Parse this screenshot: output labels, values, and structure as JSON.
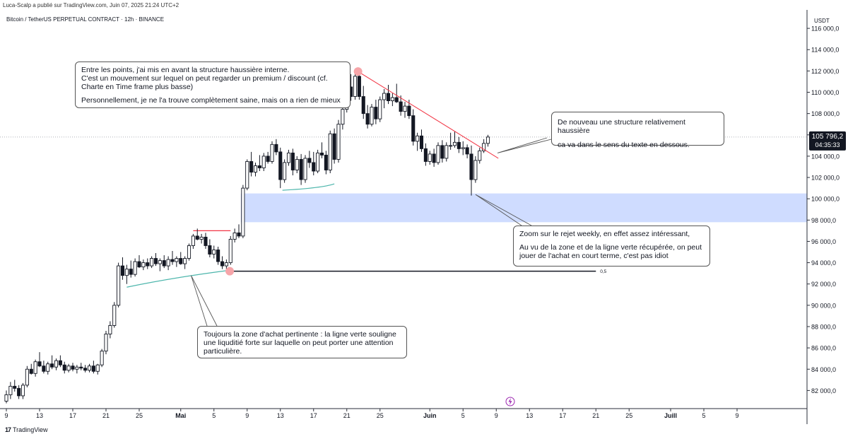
{
  "header": {
    "published": "Luca-Scalp a publié sur TradingView.com, Juin 07, 2025 21:24 UTC+2",
    "symbol": "Bitcoin / TetherUS PERPETUAL CONTRACT · 12h · BINANCE"
  },
  "branding": {
    "logo_mark": "17",
    "name": "TradingView"
  },
  "colors": {
    "up": "#ffffff",
    "down": "#131722",
    "trendline_red": "#f23645",
    "curve_teal": "#4db6ac",
    "zone": "#cfdcff",
    "marker": "#f6a5a9",
    "hline": "#131722"
  },
  "annotations": {
    "note1": {
      "p1": "Entre les points, j'ai mis en avant la structure haussière interne.\nC'est un mouvement sur lequel on peut regarder un premium / discount (cf. Charte en Time frame plus basse)",
      "p2": "Personnellement, je ne l'a trouve complètement saine, mais on a rien de mieux"
    },
    "note2": {
      "p1": "De nouveau une structure relativement haussière",
      "p2": "ca va dans le sens du texte en dessous."
    },
    "note3": {
      "p1": "Zoom sur le rejet weekly, en effet assez intéressant,",
      "p2": "Au vu de la zone et de la ligne verte récupérée, on peut jouer de l'achat en court terme, c'est pas idiot"
    },
    "note4": {
      "p1": "Toujours la zone d'achat pertinente : la ligne verte souligne une liquditié forte sur laquelle on peut porter une attention particulière."
    }
  },
  "chart_data": {
    "type": "candlestick",
    "timeframe": "12h",
    "currency": "USDT",
    "ylim": [
      80300,
      117600
    ],
    "y_ticks": [
      82000,
      84000,
      86000,
      88000,
      90000,
      92000,
      94000,
      96000,
      98000,
      100000,
      102000,
      104000,
      106000,
      108000,
      110000,
      112000,
      114000,
      116000
    ],
    "y_tick_labels": [
      "82 000,0",
      "84 000,0",
      "86 000,0",
      "88 000,0",
      "90 000,0",
      "92 000,0",
      "94 000,0",
      "96 000,0",
      "98 000,0",
      "100 000,0",
      "102 000,0",
      "104 000,0",
      "106 000,0",
      "108 000,0",
      "110 000,0",
      "112 000,0",
      "114 000,0",
      "116 000,0"
    ],
    "x_ticks": [
      {
        "label": "9",
        "bar": 0
      },
      {
        "label": "13",
        "bar": 8
      },
      {
        "label": "17",
        "bar": 16
      },
      {
        "label": "21",
        "bar": 24
      },
      {
        "label": "25",
        "bar": 32
      },
      {
        "label": "Mai",
        "bar": 42
      },
      {
        "label": "5",
        "bar": 50
      },
      {
        "label": "9",
        "bar": 58
      },
      {
        "label": "13",
        "bar": 66
      },
      {
        "label": "17",
        "bar": 74
      },
      {
        "label": "21",
        "bar": 82
      },
      {
        "label": "25",
        "bar": 90
      },
      {
        "label": "Juin",
        "bar": 102
      },
      {
        "label": "5",
        "bar": 110
      },
      {
        "label": "9",
        "bar": 118
      },
      {
        "label": "13",
        "bar": 126
      },
      {
        "label": "17",
        "bar": 134
      },
      {
        "label": "21",
        "bar": 142
      },
      {
        "label": "25",
        "bar": 150
      },
      {
        "label": "Juill",
        "bar": 160
      },
      {
        "label": "5",
        "bar": 168
      },
      {
        "label": "9",
        "bar": 176
      }
    ],
    "last_price": {
      "value": 105796.2,
      "label": "105 796,2",
      "countdown": "04:35:33"
    },
    "candles": [
      [
        0,
        81000,
        82000,
        80800,
        81600
      ],
      [
        1,
        81600,
        82800,
        81200,
        82400
      ],
      [
        2,
        82400,
        83000,
        81900,
        82200
      ],
      [
        3,
        82200,
        82500,
        81200,
        81500
      ],
      [
        4,
        81500,
        82700,
        81200,
        82500
      ],
      [
        5,
        82500,
        84300,
        82300,
        84000
      ],
      [
        6,
        84000,
        84500,
        83500,
        83600
      ],
      [
        7,
        83600,
        84900,
        83300,
        84700
      ],
      [
        8,
        84700,
        85600,
        84200,
        84300
      ],
      [
        9,
        84300,
        84800,
        83600,
        83800
      ],
      [
        10,
        83800,
        84700,
        83500,
        84500
      ],
      [
        11,
        84500,
        85300,
        84000,
        84200
      ],
      [
        12,
        84200,
        85000,
        83900,
        84800
      ],
      [
        13,
        84800,
        85300,
        84200,
        84400
      ],
      [
        14,
        84400,
        84700,
        83600,
        83900
      ],
      [
        15,
        83900,
        84500,
        83700,
        84300
      ],
      [
        16,
        84300,
        84600,
        83800,
        84000
      ],
      [
        17,
        84000,
        84400,
        83600,
        84200
      ],
      [
        18,
        84200,
        84600,
        83900,
        84100
      ],
      [
        19,
        84100,
        84400,
        83700,
        83900
      ],
      [
        20,
        83900,
        84500,
        83700,
        84300
      ],
      [
        21,
        84300,
        84800,
        83600,
        83800
      ],
      [
        22,
        83800,
        84500,
        83500,
        84400
      ],
      [
        23,
        84400,
        85900,
        84200,
        85700
      ],
      [
        24,
        85700,
        87600,
        85400,
        87300
      ],
      [
        25,
        87300,
        88500,
        86900,
        88100
      ],
      [
        26,
        88100,
        90300,
        87900,
        90000
      ],
      [
        27,
        90000,
        94000,
        89800,
        93700
      ],
      [
        28,
        93700,
        94500,
        92400,
        92800
      ],
      [
        29,
        92800,
        93800,
        92000,
        93400
      ],
      [
        30,
        93400,
        94200,
        92600,
        92900
      ],
      [
        31,
        92900,
        94400,
        92700,
        94100
      ],
      [
        32,
        94100,
        94700,
        93500,
        93600
      ],
      [
        33,
        93600,
        94300,
        93300,
        94000
      ],
      [
        34,
        94000,
        94400,
        93400,
        93700
      ],
      [
        35,
        93700,
        94600,
        93500,
        94400
      ],
      [
        36,
        94400,
        94900,
        93700,
        93900
      ],
      [
        37,
        93900,
        94400,
        93200,
        94200
      ],
      [
        38,
        94200,
        94700,
        93500,
        93700
      ],
      [
        39,
        93700,
        94600,
        93300,
        94300
      ],
      [
        40,
        94300,
        95100,
        93800,
        94100
      ],
      [
        41,
        94100,
        94600,
        93600,
        94400
      ],
      [
        42,
        94400,
        95000,
        93800,
        93900
      ],
      [
        43,
        93900,
        94600,
        93400,
        94400
      ],
      [
        44,
        94400,
        95800,
        94200,
        95600
      ],
      [
        45,
        95600,
        96700,
        95300,
        96500
      ],
      [
        46,
        96500,
        97200,
        96100,
        96200
      ],
      [
        47,
        96200,
        96700,
        95800,
        96400
      ],
      [
        48,
        96400,
        96800,
        95300,
        95600
      ],
      [
        49,
        95600,
        96200,
        94500,
        94800
      ],
      [
        50,
        94800,
        95600,
        94400,
        95200
      ],
      [
        51,
        95200,
        95500,
        93800,
        94100
      ],
      [
        52,
        94100,
        94600,
        93400,
        93700
      ],
      [
        53,
        93700,
        94300,
        93200,
        94000
      ],
      [
        54,
        94000,
        96500,
        93800,
        96200
      ],
      [
        55,
        96200,
        97200,
        95900,
        96800
      ],
      [
        56,
        96800,
        97600,
        96300,
        96500
      ],
      [
        57,
        96500,
        101300,
        96300,
        101000
      ],
      [
        58,
        101000,
        103700,
        100800,
        103500
      ],
      [
        59,
        103500,
        104400,
        102100,
        102500
      ],
      [
        60,
        102500,
        103400,
        102100,
        103100
      ],
      [
        61,
        103100,
        104100,
        102600,
        102900
      ],
      [
        62,
        102900,
        104300,
        102600,
        104000
      ],
      [
        63,
        104000,
        104400,
        103300,
        103500
      ],
      [
        64,
        103500,
        105400,
        103300,
        105100
      ],
      [
        65,
        105100,
        105600,
        104100,
        104400
      ],
      [
        66,
        104400,
        104800,
        101000,
        101800
      ],
      [
        67,
        101800,
        103700,
        101500,
        103400
      ],
      [
        68,
        103400,
        104600,
        103100,
        104300
      ],
      [
        69,
        104300,
        104700,
        102200,
        102700
      ],
      [
        70,
        102700,
        104000,
        102400,
        103700
      ],
      [
        71,
        103700,
        104200,
        101300,
        101800
      ],
      [
        72,
        101800,
        104100,
        101500,
        103800
      ],
      [
        73,
        103800,
        104500,
        102900,
        103400
      ],
      [
        74,
        103400,
        104400,
        102200,
        102600
      ],
      [
        75,
        102600,
        104600,
        102400,
        104300
      ],
      [
        76,
        104300,
        105300,
        103800,
        104100
      ],
      [
        77,
        104100,
        104500,
        102300,
        102700
      ],
      [
        78,
        102700,
        106400,
        102400,
        106100
      ],
      [
        79,
        106100,
        106600,
        103300,
        103700
      ],
      [
        80,
        103700,
        107400,
        103400,
        107000
      ],
      [
        81,
        107000,
        108700,
        106500,
        108400
      ],
      [
        82,
        108400,
        110800,
        108100,
        110500
      ],
      [
        83,
        110500,
        111700,
        109200,
        109600
      ],
      [
        84,
        109600,
        111900,
        109300,
        111500
      ],
      [
        85,
        111500,
        111950,
        109300,
        109600
      ],
      [
        86,
        109600,
        110600,
        107500,
        108000
      ],
      [
        87,
        108000,
        108800,
        106600,
        107000
      ],
      [
        88,
        107000,
        108900,
        106800,
        108600
      ],
      [
        89,
        108600,
        109300,
        107000,
        107500
      ],
      [
        90,
        107500,
        109600,
        107200,
        109300
      ],
      [
        91,
        109300,
        110300,
        108500,
        109900
      ],
      [
        92,
        109900,
        110700,
        108900,
        109200
      ],
      [
        93,
        109200,
        109900,
        108700,
        109500
      ],
      [
        94,
        109500,
        110800,
        109000,
        109100
      ],
      [
        95,
        109100,
        109700,
        107800,
        108200
      ],
      [
        96,
        108200,
        109100,
        107600,
        108700
      ],
      [
        97,
        108700,
        109300,
        107500,
        107800
      ],
      [
        98,
        107800,
        108400,
        105000,
        105400
      ],
      [
        99,
        105400,
        106200,
        104500,
        105900
      ],
      [
        100,
        105900,
        106500,
        104400,
        104700
      ],
      [
        101,
        104700,
        105200,
        103100,
        103500
      ],
      [
        102,
        103500,
        104500,
        103200,
        104200
      ],
      [
        103,
        104200,
        104700,
        103000,
        103400
      ],
      [
        104,
        103400,
        105300,
        103200,
        105000
      ],
      [
        105,
        105000,
        105500,
        103400,
        103800
      ],
      [
        106,
        103800,
        105300,
        103500,
        105000
      ],
      [
        107,
        105000,
        106200,
        104600,
        105000
      ],
      [
        108,
        105000,
        106300,
        104800,
        105300
      ],
      [
        109,
        105300,
        105800,
        104300,
        104700
      ],
      [
        110,
        104700,
        105400,
        104100,
        104800
      ],
      [
        111,
        104800,
        105100,
        103800,
        104200
      ],
      [
        112,
        104200,
        105000,
        100300,
        101800
      ],
      [
        113,
        101800,
        104000,
        101500,
        103600
      ],
      [
        114,
        103600,
        104800,
        103300,
        104500
      ],
      [
        115,
        104500,
        105600,
        104300,
        105200
      ],
      [
        116,
        105200,
        106000,
        104900,
        105796.2
      ]
    ],
    "drawings": {
      "demand_zone": {
        "from": 97800,
        "to": 100500,
        "start_bar": 57
      },
      "horizontal_line": {
        "price": 93200,
        "start_bar": 54,
        "end_bar": 142,
        "label": "0,5"
      },
      "red_resistance_line": {
        "price": 97000,
        "start_bar": 45,
        "end_bar": 54
      },
      "marker_low": {
        "bar": 53.8,
        "price": 93200
      },
      "marker_high": {
        "bar": 84.7,
        "price": 111950
      },
      "red_trendline": {
        "from": [
          84.7,
          111950
        ],
        "to": [
          118.5,
          103800
        ]
      },
      "teal_curve_1": {
        "points": [
          [
            29,
            91700
          ],
          [
            40,
            92600
          ],
          [
            54,
            93300
          ]
        ]
      },
      "teal_curve_2": {
        "points": [
          [
            66.5,
            100800
          ],
          [
            76,
            101000
          ],
          [
            79,
            101400
          ]
        ]
      }
    }
  }
}
